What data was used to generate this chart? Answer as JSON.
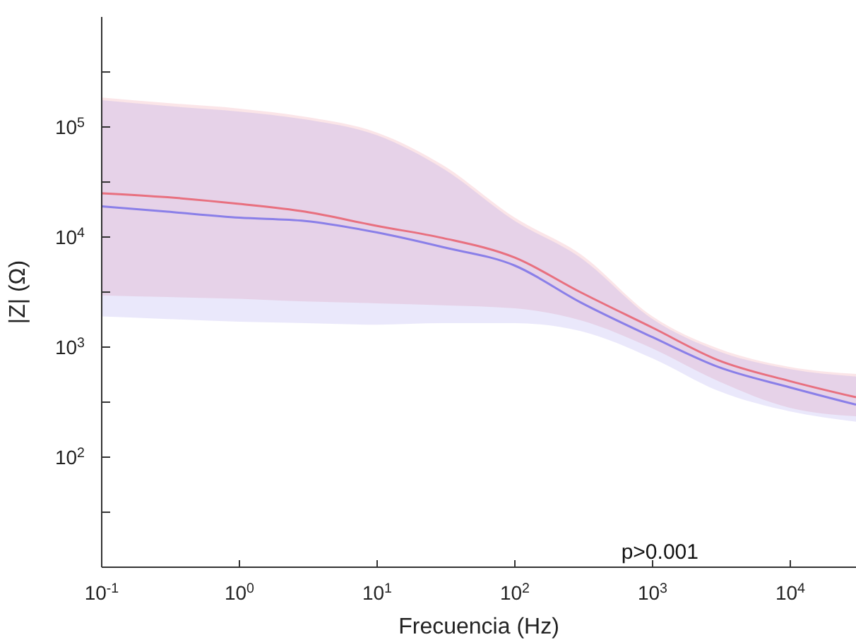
{
  "chart_data": {
    "type": "line",
    "xlabel": "Frecuencia (Hz)",
    "ylabel": "|Z| (Ω)",
    "log": "xy",
    "grid": false,
    "legend": false,
    "line_style": "solid",
    "annotations": [
      "p>0.001"
    ],
    "x": [
      0.1,
      0.3,
      1,
      3,
      10,
      30,
      100,
      300,
      1000,
      3000,
      10000,
      30000
    ],
    "xlim": [
      0.1,
      30000
    ],
    "xticks": [
      {
        "value": 0.1,
        "label": "10$^{-1}$"
      },
      {
        "value": 1,
        "label": "10$^{0}$"
      },
      {
        "value": 10,
        "label": "10$^{1}$"
      },
      {
        "value": 100,
        "label": "10$^{2}$"
      },
      {
        "value": 1000,
        "label": "10$^{3}$"
      },
      {
        "value": 10000,
        "label": "10$^{4}$"
      }
    ],
    "ylim": [
      10,
      1000000
    ],
    "yticks": [
      {
        "value": 31.6,
        "label": null
      },
      {
        "value": 100,
        "label": "10$^{2}$"
      },
      {
        "value": 316,
        "label": null
      },
      {
        "value": 1000,
        "label": "10$^{3}$"
      },
      {
        "value": 3160,
        "label": null
      },
      {
        "value": 10000,
        "label": "10$^{4}$"
      },
      {
        "value": 31600,
        "label": null
      },
      {
        "value": 100000,
        "label": "10$^{5}$"
      },
      {
        "value": 316000,
        "label": null
      }
    ],
    "series": [
      {
        "color": "#e8707f",
        "values": [
          25000,
          23000,
          20000,
          17000,
          12600,
          9800,
          6500,
          3150,
          1500,
          760,
          490,
          350
        ],
        "lower": [
          2950,
          2850,
          2750,
          2600,
          2500,
          2400,
          2250,
          1750,
          970,
          490,
          280,
          235
        ],
        "upper": [
          185000,
          165000,
          147000,
          124000,
          89000,
          45000,
          15000,
          7000,
          1900,
          970,
          660,
          570
        ]
      },
      {
        "color": "#8a7fe8",
        "values": [
          19000,
          17000,
          15000,
          14000,
          11000,
          8100,
          5500,
          2550,
          1230,
          660,
          430,
          300
        ],
        "lower": [
          1900,
          1800,
          1700,
          1650,
          1600,
          1650,
          1650,
          1400,
          790,
          400,
          260,
          210
        ],
        "upper": [
          175000,
          155000,
          138000,
          117000,
          84000,
          42000,
          14000,
          6500,
          1800,
          920,
          630,
          540
        ]
      }
    ]
  }
}
